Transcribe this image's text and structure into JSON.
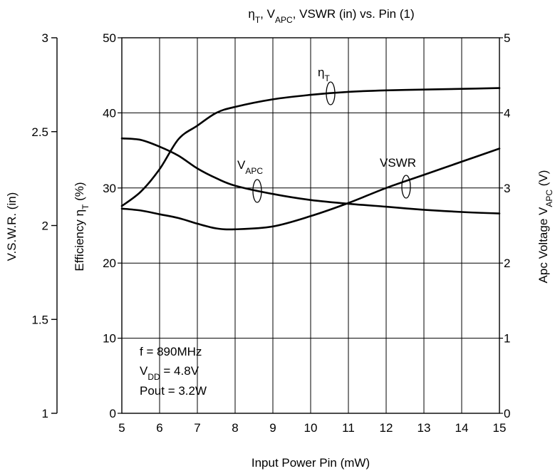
{
  "chart_data": {
    "type": "line",
    "title": {
      "pre": "η",
      "sub1": "T",
      "mid": ", V",
      "sub2": "APC",
      "post": ", VSWR (in) vs. Pin (1)"
    },
    "xlabel": "Input Power  Pin  (mW)",
    "ylabel_left_outer": "V.S.W.R. (in)",
    "ylabel_left": {
      "pre": "Efficiency  η",
      "sub": "T",
      "post": "  (%)"
    },
    "ylabel_right": {
      "pre": "Apc Voltage  V",
      "sub": "APC",
      "post": "  (V)"
    },
    "xlim": [
      5,
      15
    ],
    "ylim_left": [
      0,
      50
    ],
    "ylim_right": [
      0,
      5
    ],
    "ylim_vswr": [
      1,
      3
    ],
    "x_ticks": [
      "5",
      "6",
      "7",
      "8",
      "9",
      "10",
      "11",
      "12",
      "13",
      "14",
      "15"
    ],
    "y_left_ticks": [
      "0",
      "10",
      "20",
      "30",
      "40",
      "50"
    ],
    "y_right_ticks": [
      "0",
      "1",
      "2",
      "3",
      "4",
      "5"
    ],
    "y_vswr_ticks": [
      "1",
      "1.5",
      "2",
      "2.5",
      "3"
    ],
    "grid": true,
    "series": [
      {
        "name": "ηT",
        "axis": "left",
        "x": [
          5,
          5.5,
          6,
          6.5,
          7,
          7.5,
          8,
          9,
          10,
          11,
          12,
          13,
          14,
          15
        ],
        "y": [
          27.6,
          29.5,
          32.5,
          36.5,
          38.3,
          40,
          40.8,
          41.8,
          42.4,
          42.8,
          43,
          43.1,
          43.2,
          43.3
        ]
      },
      {
        "name": "VAPC",
        "axis": "right",
        "x": [
          5,
          5.5,
          6,
          6.5,
          7,
          7.5,
          8,
          9,
          10,
          11,
          12,
          13,
          14,
          15
        ],
        "y": [
          3.66,
          3.64,
          3.55,
          3.43,
          3.26,
          3.13,
          3.03,
          2.92,
          2.84,
          2.79,
          2.75,
          2.71,
          2.68,
          2.66
        ]
      },
      {
        "name": "VSWR",
        "axis": "vswr",
        "x": [
          5,
          5.5,
          6,
          6.5,
          7,
          7.5,
          8,
          9,
          10,
          11,
          12,
          13,
          14,
          15
        ],
        "y": [
          2.09,
          2.08,
          2.06,
          2.04,
          2.01,
          1.985,
          1.98,
          1.995,
          2.05,
          2.12,
          2.2,
          2.27,
          2.34,
          2.41
        ]
      }
    ],
    "curve_labels": [
      {
        "series": "ηT",
        "pre": "η",
        "sub": "T"
      },
      {
        "series": "VAPC",
        "pre": "V",
        "sub": "APC"
      },
      {
        "series": "VSWR",
        "pre": "VSWR",
        "sub": ""
      }
    ],
    "conditions": [
      {
        "pre": "f = 890MHz",
        "sub": "",
        "post": ""
      },
      {
        "pre": "V",
        "sub": "DD",
        "post": " = 4.8V"
      },
      {
        "pre": "Pout = 3.2W",
        "sub": "",
        "post": ""
      }
    ]
  }
}
